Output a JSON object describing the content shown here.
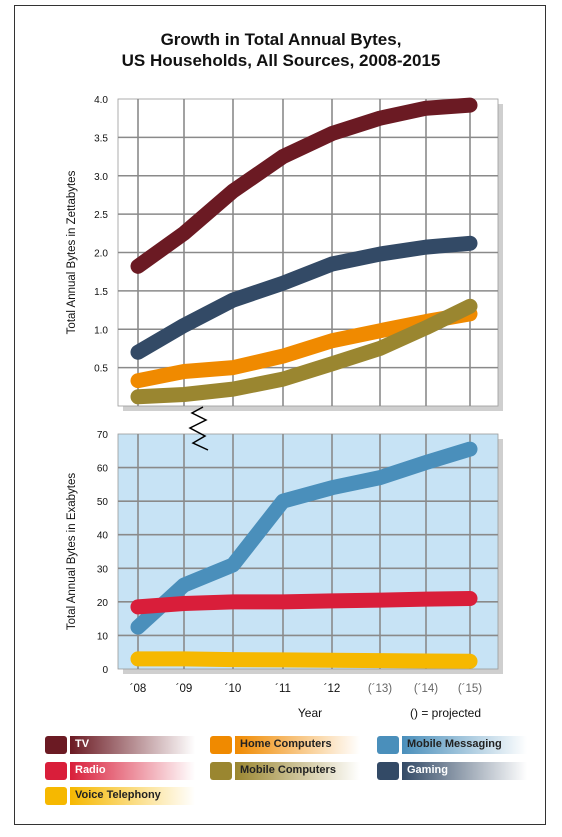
{
  "title_line1": "Growth in Total Annual Bytes,",
  "title_line2": "US Households, All Sources, 2008-2015",
  "xlabel": "Year",
  "note": "() = projected",
  "chart_data": [
    {
      "type": "line",
      "ylabel": "Total Annual Bytes  in Zettabytes",
      "categories": [
        "´08",
        "´09",
        "´10",
        "´11",
        "´12",
        "(´13)",
        "(´14)",
        "(´15)"
      ],
      "ylim": [
        0,
        4.0
      ],
      "yticks": [
        "4.0",
        "3.5",
        "3.0",
        "2.5",
        "2.0",
        "1.5",
        "1.0",
        "0.5"
      ],
      "grid": true,
      "series": [
        {
          "name": "TV",
          "color": "#6b1a23",
          "values": [
            1.82,
            2.25,
            2.8,
            3.25,
            3.55,
            3.75,
            3.88,
            3.92
          ]
        },
        {
          "name": "Gaming",
          "color": "#334a66",
          "values": [
            0.7,
            1.05,
            1.38,
            1.6,
            1.85,
            1.98,
            2.07,
            2.12
          ]
        },
        {
          "name": "Home Computers",
          "color": "#f08a00",
          "values": [
            0.33,
            0.45,
            0.5,
            0.65,
            0.85,
            0.98,
            1.1,
            1.2
          ]
        },
        {
          "name": "Mobile Computers",
          "color": "#9a8630",
          "values": [
            0.12,
            0.15,
            0.22,
            0.35,
            0.55,
            0.75,
            1.02,
            1.3
          ]
        }
      ]
    },
    {
      "type": "line",
      "ylabel": "Total Annual Bytes in Exabytes",
      "categories": [
        "´08",
        "´09",
        "´10",
        "´11",
        "´12",
        "(´13)",
        "(´14)",
        "(´15)"
      ],
      "ylim": [
        0,
        70
      ],
      "yticks": [
        "70",
        "60",
        "50",
        "40",
        "30",
        "20",
        "10",
        "0"
      ],
      "grid": true,
      "background": "#c7e3f5",
      "series": [
        {
          "name": "Mobile Messaging",
          "color": "#4a8fbb",
          "values": [
            12.5,
            25,
            31,
            50,
            54,
            57,
            61.5,
            65.5
          ]
        },
        {
          "name": "Radio",
          "color": "#d91e3a",
          "values": [
            18.5,
            19.5,
            20,
            20,
            20.3,
            20.5,
            20.8,
            21
          ]
        },
        {
          "name": "Voice Telephony",
          "color": "#f6b800",
          "values": [
            3,
            3,
            2.8,
            2.7,
            2.6,
            2.5,
            2.4,
            2.3
          ]
        }
      ]
    }
  ],
  "legend": [
    {
      "label": "TV",
      "color": "#6b1a23",
      "text": "dark"
    },
    {
      "label": "Radio",
      "color": "#d91e3a",
      "text": "dark"
    },
    {
      "label": "Voice Telephony",
      "color": "#f6b800",
      "text": "light"
    },
    {
      "label": "Home Computers",
      "color": "#f08a00",
      "text": "light"
    },
    {
      "label": "Mobile Computers",
      "color": "#9a8630",
      "text": "light"
    },
    {
      "label": "Mobile Messaging",
      "color": "#4a8fbb",
      "text": "light"
    },
    {
      "label": "Gaming",
      "color": "#334a66",
      "text": "dark"
    }
  ]
}
